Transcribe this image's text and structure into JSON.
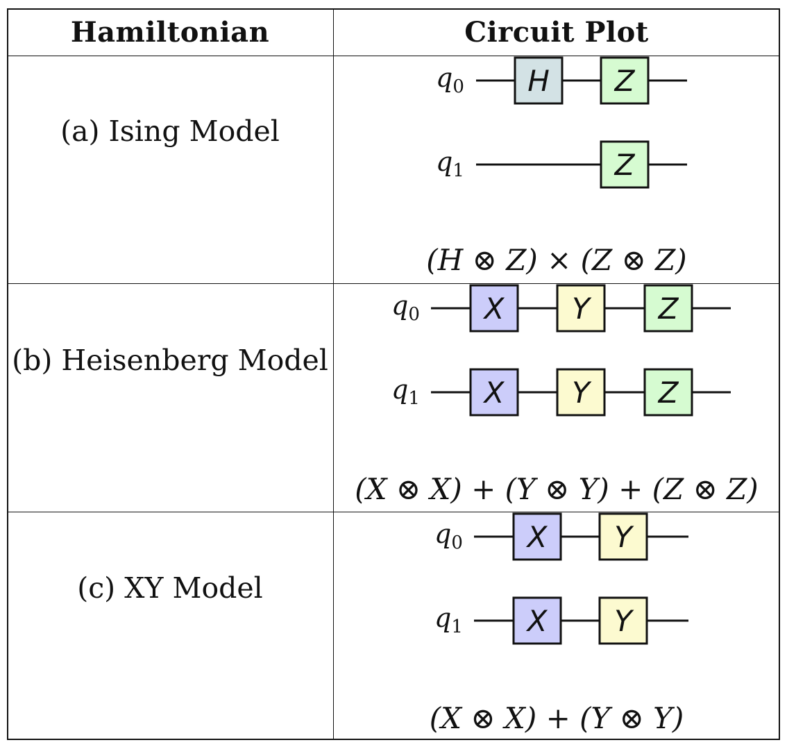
{
  "header": {
    "col1": "Hamiltonian",
    "col2": "Circuit Plot"
  },
  "colors": {
    "H": "#d3e2e5",
    "X": "#cccdfa",
    "Y": "#fcfad0",
    "Z": "#d6fbd1",
    "line": "#111111"
  },
  "rows": [
    {
      "label": "(a) Ising Model",
      "formula": "(H ⊗ Z) × (Z ⊗ Z)",
      "qubits": [
        {
          "label": "q",
          "sub": "0",
          "gates": [
            "H",
            "Z"
          ]
        },
        {
          "label": "q",
          "sub": "1",
          "gates": [
            "Z"
          ]
        }
      ]
    },
    {
      "label": "(b) Heisenberg Model",
      "formula": "(X ⊗ X) + (Y ⊗ Y) + (Z ⊗ Z)",
      "qubits": [
        {
          "label": "q",
          "sub": "0",
          "gates": [
            "X",
            "Y",
            "Z"
          ]
        },
        {
          "label": "q",
          "sub": "1",
          "gates": [
            "X",
            "Y",
            "Z"
          ]
        }
      ]
    },
    {
      "label": "(c) XY Model",
      "formula": "(X ⊗ X) + (Y ⊗ Y)",
      "qubits": [
        {
          "label": "q",
          "sub": "0",
          "gates": [
            "X",
            "Y"
          ]
        },
        {
          "label": "q",
          "sub": "1",
          "gates": [
            "X",
            "Y"
          ]
        }
      ]
    }
  ]
}
